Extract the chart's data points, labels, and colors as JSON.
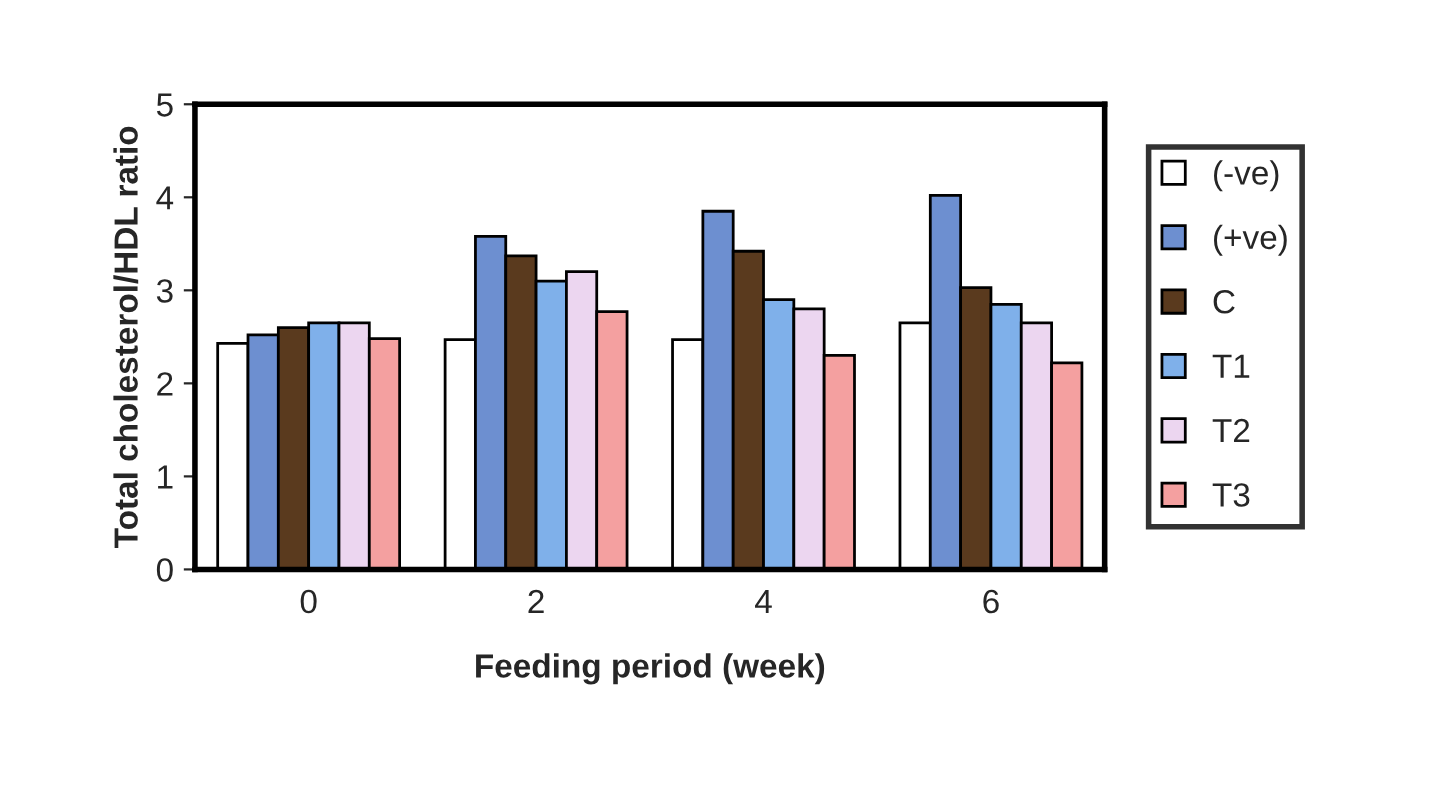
{
  "chart_data": {
    "type": "bar",
    "xlabel": "Feeding period (week)",
    "ylabel": "Total cholesterol/HDL ratio",
    "categories": [
      "0",
      "2",
      "4",
      "6"
    ],
    "series": [
      {
        "name": "(-ve)",
        "color": "#ffffff",
        "values": [
          2.43,
          2.47,
          2.47,
          2.65
        ]
      },
      {
        "name": "(+ve)",
        "color": "#6d8fd0",
        "values": [
          2.52,
          3.58,
          3.85,
          4.02
        ]
      },
      {
        "name": "C",
        "color": "#5a3a1e",
        "values": [
          2.6,
          3.37,
          3.42,
          3.03
        ]
      },
      {
        "name": "T1",
        "color": "#7fb0ea",
        "values": [
          2.65,
          3.1,
          2.9,
          2.85
        ]
      },
      {
        "name": "T2",
        "color": "#ecd6f0",
        "values": [
          2.65,
          3.2,
          2.8,
          2.65
        ]
      },
      {
        "name": "T3",
        "color": "#f4a0a0",
        "values": [
          2.48,
          2.77,
          2.3,
          2.22
        ]
      }
    ],
    "ylim": [
      0,
      5
    ],
    "yticks": [
      0,
      1,
      2,
      3,
      4,
      5
    ],
    "grid": false,
    "legend": "right"
  }
}
